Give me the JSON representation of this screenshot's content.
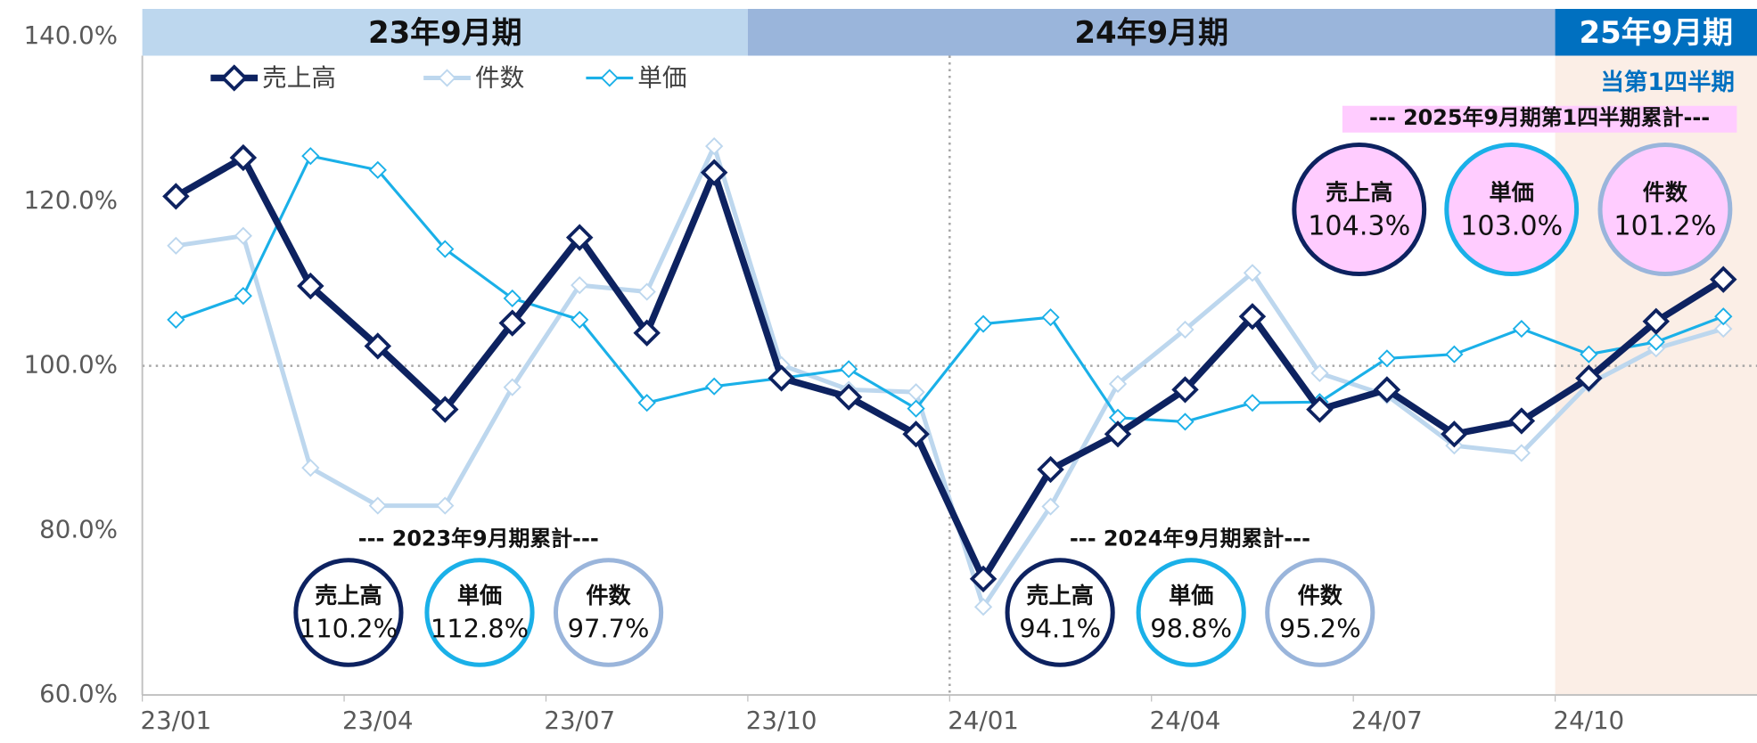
{
  "chart_data": {
    "type": "line",
    "categories": [
      "23/01",
      null,
      null,
      "23/04",
      null,
      null,
      "23/07",
      null,
      null,
      "23/10",
      null,
      null,
      "24/01",
      null,
      null,
      "24/04",
      null,
      null,
      "24/07",
      null,
      null,
      "24/10",
      null,
      null
    ],
    "series": [
      {
        "name": "売上高",
        "color": "#0d2260",
        "values": [
          120.6,
          125.3,
          109.7,
          102.4,
          94.7,
          105.2,
          115.6,
          104.0,
          123.5,
          98.5,
          96.2,
          91.7,
          74.1,
          87.4,
          91.7,
          97.1,
          106.0,
          94.7,
          97.1,
          91.7,
          93.3,
          98.5,
          105.4,
          110.5
        ]
      },
      {
        "name": "件数",
        "color": "#bdd7ee",
        "values": [
          114.6,
          115.8,
          87.6,
          83.0,
          83.0,
          97.4,
          109.8,
          109.0,
          126.7,
          100.1,
          97.1,
          96.8,
          70.7,
          82.9,
          97.8,
          104.4,
          111.3,
          99.1,
          96.4,
          90.3,
          89.4,
          97.8,
          102.1,
          104.5
        ]
      },
      {
        "name": "単価",
        "color": "#1ab0e8",
        "values": [
          105.6,
          108.5,
          125.5,
          123.8,
          114.2,
          108.2,
          105.6,
          95.5,
          97.5,
          98.5,
          99.6,
          94.8,
          105.1,
          105.9,
          93.7,
          93.2,
          95.5,
          95.6,
          100.9,
          101.4,
          104.5,
          101.4,
          102.9,
          106.0
        ]
      }
    ],
    "ylim": [
      60,
      140
    ],
    "yticks": [
      {
        "value": 60,
        "label": "60.0%"
      },
      {
        "value": 80,
        "label": "80.0%"
      },
      {
        "value": 100,
        "label": "100.0%"
      },
      {
        "value": 120,
        "label": "120.0%"
      },
      {
        "value": 140,
        "label": "140.0%"
      }
    ],
    "periods": [
      "23年9月期",
      "24年9月期",
      "25年9月期"
    ],
    "current_quarter": "当第1四半期",
    "summaries": [
      {
        "title": "--- 2023年9月期累計---",
        "items": [
          {
            "name": "売上高",
            "value": "110.2%"
          },
          {
            "name": "単価",
            "value": "112.8%"
          },
          {
            "name": "件数",
            "value": "97.7%"
          }
        ]
      },
      {
        "title": "--- 2024年9月期累計---",
        "items": [
          {
            "name": "売上高",
            "value": "94.1%"
          },
          {
            "name": "単価",
            "value": "98.8%"
          },
          {
            "name": "件数",
            "value": "95.2%"
          }
        ]
      },
      {
        "title": "--- 2025年9月期第1四半期累計---",
        "items": [
          {
            "name": "売上高",
            "value": "104.3%"
          },
          {
            "name": "単価",
            "value": "103.0%"
          },
          {
            "name": "件数",
            "value": "101.2%"
          }
        ]
      }
    ]
  }
}
